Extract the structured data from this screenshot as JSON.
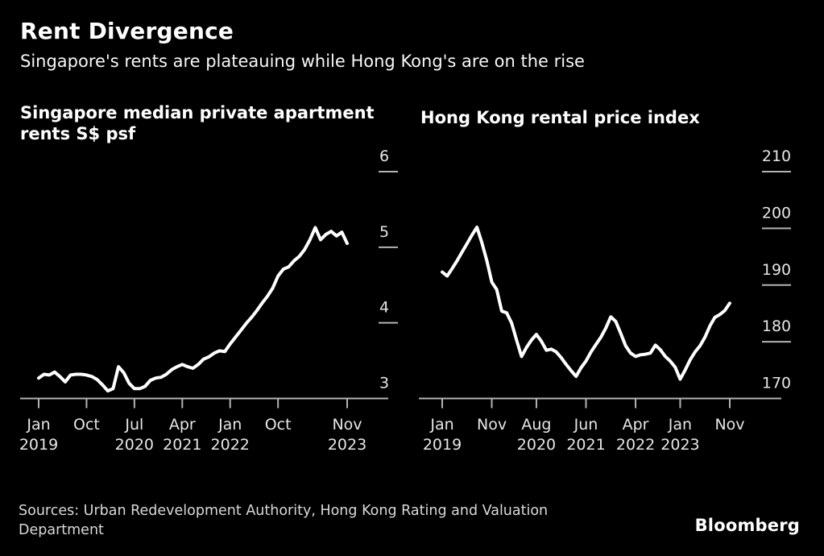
{
  "header": {
    "title": "Rent Divergence",
    "subtitle": "Singapore's rents are plateauing while Hong Kong's are on the rise"
  },
  "chart_data": [
    {
      "type": "line",
      "title": "Singapore median private apartment rents S$ psf",
      "title_lines": [
        "Singapore median private apartment",
        "rents S$ psf"
      ],
      "ylabel": "S$ psf",
      "frequency": "monthly",
      "x_range": [
        "Jan 2019",
        "Nov 2023"
      ],
      "ylim": [
        3,
        6
      ],
      "grid": false,
      "legend": "none",
      "y_ticks": [
        3,
        4,
        5,
        6
      ],
      "x_ticks": [
        {
          "month": "Jan",
          "year": "2019",
          "m": 0
        },
        {
          "month": "Oct",
          "year": "",
          "m": 9
        },
        {
          "month": "Jul",
          "year": "2020",
          "m": 18
        },
        {
          "month": "Apr",
          "year": "2021",
          "m": 27
        },
        {
          "month": "Jan",
          "year": "2022",
          "m": 36
        },
        {
          "month": "Oct",
          "year": "",
          "m": 45
        },
        {
          "month": "Nov",
          "year": "2023",
          "m": 58
        }
      ],
      "values": [
        3.27,
        3.32,
        3.31,
        3.35,
        3.29,
        3.22,
        3.31,
        3.32,
        3.32,
        3.31,
        3.29,
        3.25,
        3.18,
        3.1,
        3.13,
        3.42,
        3.34,
        3.2,
        3.13,
        3.13,
        3.16,
        3.24,
        3.27,
        3.28,
        3.32,
        3.38,
        3.42,
        3.45,
        3.42,
        3.4,
        3.45,
        3.52,
        3.55,
        3.6,
        3.63,
        3.62,
        3.72,
        3.81,
        3.9,
        3.99,
        4.07,
        4.16,
        4.26,
        4.35,
        4.46,
        4.62,
        4.71,
        4.74,
        4.82,
        4.88,
        4.97,
        5.1,
        5.26,
        5.1,
        5.17,
        5.21,
        5.15,
        5.2,
        5.05
      ]
    },
    {
      "type": "line",
      "title": "Hong Kong rental price index",
      "title_lines": [
        "Hong Kong rental price index"
      ],
      "ylabel": "index",
      "frequency": "monthly",
      "x_range": [
        "Jan 2019",
        "Nov 2023"
      ],
      "ylim": [
        170,
        210
      ],
      "grid": false,
      "legend": "none",
      "y_ticks": [
        170,
        180,
        190,
        200,
        210
      ],
      "x_ticks": [
        {
          "month": "Jan",
          "year": "2019",
          "m": 0
        },
        {
          "month": "Nov",
          "year": "",
          "m": 10
        },
        {
          "month": "Aug",
          "year": "2020",
          "m": 19
        },
        {
          "month": "Jun",
          "year": "2021",
          "m": 29
        },
        {
          "month": "Apr",
          "year": "2022",
          "m": 39
        },
        {
          "month": "Jan",
          "year": "2023",
          "m": 48
        },
        {
          "month": "Nov",
          "year": "",
          "m": 58
        }
      ],
      "values": [
        192.3,
        191.6,
        192.9,
        194.3,
        195.8,
        197.3,
        198.8,
        200.2,
        197.5,
        194.3,
        190.5,
        189.2,
        185.4,
        185.1,
        183.3,
        180.3,
        177.4,
        179.0,
        180.3,
        181.3,
        180.1,
        178.5,
        178.7,
        178.2,
        177.2,
        176.0,
        174.9,
        173.9,
        175.4,
        176.6,
        178.2,
        179.5,
        180.8,
        182.4,
        184.4,
        183.6,
        181.5,
        179.3,
        178.0,
        177.4,
        177.7,
        177.8,
        178.0,
        179.4,
        178.6,
        177.4,
        176.6,
        175.5,
        173.4,
        175.0,
        176.8,
        178.2,
        179.3,
        180.8,
        182.8,
        184.3,
        184.8,
        185.5,
        186.8
      ]
    }
  ],
  "footer": {
    "sources_lines": [
      "Sources: Urban Redevelopment Authority, Hong Kong Rating and Valuation",
      "Department"
    ],
    "logo": "Bloomberg"
  },
  "colors": {
    "background": "#000000",
    "line": "#ffffff",
    "axis": "#b4b4b4",
    "tick_label": "#e6e6e6",
    "title": "#ffffff",
    "source_text": "#d9d9d9"
  }
}
